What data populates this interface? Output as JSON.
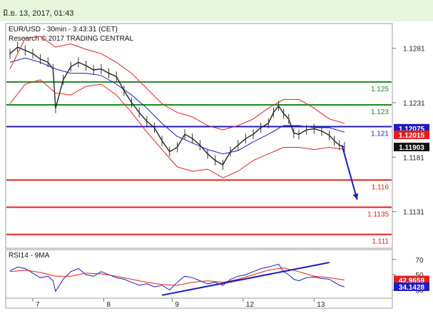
{
  "header": {
    "datetime": "มิ.ย. 13, 2017, 01:43"
  },
  "chart_data": [
    {
      "type": "line",
      "title": "EUR/USD - 30min - 3:43:31 (CET)",
      "subtitle": "Research © 2017 TRADING CENTRAL",
      "x_ticks": [
        "7",
        "8",
        "9",
        "12",
        "13"
      ],
      "y_ticks": [
        1.1181,
        1.1231,
        1.1281,
        1.1131
      ],
      "ylim": [
        1.1098,
        1.1303
      ],
      "levels": [
        {
          "label": "1.125",
          "value": 1.125,
          "color": "#1e8a1e"
        },
        {
          "label": "1.123",
          "value": 1.1229,
          "color": "#1e8a1e"
        },
        {
          "label": "1.121",
          "value": 1.1209,
          "color": "#1c1cbf"
        },
        {
          "label": "1.116",
          "value": 1.116,
          "color": "#e02020"
        },
        {
          "label": "1.1135",
          "value": 1.1135,
          "color": "#e02020"
        },
        {
          "label": "1.111",
          "value": 1.111,
          "color": "#e02020"
        }
      ],
      "price_badges": [
        {
          "label": "1.12075",
          "value": 1.12075,
          "color": "#1c1cbf"
        },
        {
          "label": "1.12015",
          "value": 1.12015,
          "color": "#e02020"
        },
        {
          "label": "1.11903",
          "value": 1.11903,
          "color": "#111111"
        }
      ],
      "series": [
        {
          "name": "close",
          "color": "#222222",
          "x": [
            0,
            3,
            6,
            9,
            12,
            15,
            17,
            18,
            21,
            24,
            27,
            30,
            33,
            36,
            39,
            42,
            45,
            48,
            51,
            54,
            57,
            60,
            63,
            66,
            69,
            72,
            75,
            78,
            81,
            84,
            87,
            90,
            93,
            96,
            99,
            102,
            104,
            106,
            108,
            110,
            112,
            114,
            117,
            120,
            123,
            126,
            128,
            130,
            132
          ],
          "y": [
            1.1276,
            1.1282,
            1.1279,
            1.1276,
            1.1271,
            1.1268,
            1.1262,
            1.1226,
            1.1252,
            1.1264,
            1.1268,
            1.1265,
            1.1261,
            1.1262,
            1.1258,
            1.1255,
            1.1242,
            1.1231,
            1.1222,
            1.1214,
            1.1208,
            1.1196,
            1.1186,
            1.119,
            1.1202,
            1.1198,
            1.1192,
            1.1184,
            1.1178,
            1.1174,
            1.1186,
            1.1192,
            1.1198,
            1.1202,
            1.1208,
            1.1212,
            1.1222,
            1.1228,
            1.1221,
            1.1216,
            1.1203,
            1.1202,
            1.1206,
            1.1207,
            1.1205,
            1.1201,
            1.1196,
            1.1192,
            1.11903
          ]
        },
        {
          "name": "ma",
          "color": "#1c1cbf",
          "x": [
            0,
            6,
            12,
            18,
            24,
            30,
            36,
            42,
            48,
            54,
            60,
            66,
            72,
            78,
            84,
            90,
            96,
            102,
            108,
            114,
            120,
            126,
            132
          ],
          "y": [
            1.1268,
            1.1272,
            1.1268,
            1.1262,
            1.1258,
            1.1258,
            1.1256,
            1.1248,
            1.1238,
            1.1226,
            1.1212,
            1.12,
            1.1194,
            1.1188,
            1.1184,
            1.1187,
            1.1195,
            1.1202,
            1.121,
            1.121,
            1.1208,
            1.1208,
            1.1204
          ]
        },
        {
          "name": "upper",
          "color": "#e02020",
          "x": [
            0,
            6,
            12,
            18,
            24,
            30,
            36,
            42,
            48,
            54,
            60,
            66,
            72,
            78,
            84,
            90,
            96,
            102,
            108,
            114,
            120,
            126,
            132
          ],
          "y": [
            1.1262,
            1.129,
            1.1292,
            1.1282,
            1.1285,
            1.128,
            1.1276,
            1.1268,
            1.1258,
            1.1244,
            1.123,
            1.1222,
            1.1218,
            1.121,
            1.1206,
            1.121,
            1.1216,
            1.1226,
            1.1234,
            1.1234,
            1.1226,
            1.1216,
            1.1212
          ]
        },
        {
          "name": "lower",
          "color": "#e02020",
          "x": [
            0,
            6,
            12,
            18,
            24,
            30,
            36,
            42,
            48,
            54,
            60,
            66,
            72,
            78,
            84,
            90,
            96,
            102,
            108,
            114,
            120,
            126,
            132
          ],
          "y": [
            1.123,
            1.1248,
            1.1252,
            1.124,
            1.1238,
            1.1246,
            1.1248,
            1.1238,
            1.1222,
            1.1204,
            1.1188,
            1.1172,
            1.1168,
            1.117,
            1.1162,
            1.1168,
            1.1178,
            1.1184,
            1.119,
            1.119,
            1.1188,
            1.119,
            1.1188
          ]
        }
      ],
      "annotations": [
        {
          "type": "arrow",
          "color": "#1c1cbf",
          "x": [
            131,
            137
          ],
          "y": [
            1.1192,
            1.1142
          ]
        }
      ]
    },
    {
      "type": "line",
      "title": "RSI14 - 9MA",
      "y_ticks": [
        70,
        50,
        30
      ],
      "ylim": [
        20,
        82
      ],
      "price_badges": [
        {
          "label": "42.9659",
          "value": 42.9659,
          "color": "#e02020"
        },
        {
          "label": "34.1428",
          "value": 34.1428,
          "color": "#1c1cbf"
        }
      ],
      "series": [
        {
          "name": "RSI14",
          "color": "#1c1cbf",
          "x": [
            0,
            3,
            6,
            9,
            12,
            15,
            17,
            18,
            21,
            24,
            27,
            30,
            33,
            36,
            39,
            42,
            45,
            48,
            51,
            54,
            57,
            60,
            63,
            66,
            69,
            72,
            75,
            78,
            81,
            84,
            87,
            90,
            93,
            96,
            99,
            102,
            104,
            106,
            108,
            110,
            112,
            114,
            117,
            120,
            123,
            126,
            128,
            130,
            132
          ],
          "y": [
            55,
            60,
            58,
            52,
            46,
            48,
            42,
            28,
            44,
            54,
            58,
            50,
            48,
            54,
            50,
            46,
            44,
            40,
            36,
            38,
            34,
            36,
            30,
            40,
            48,
            46,
            42,
            38,
            40,
            36,
            44,
            48,
            50,
            54,
            58,
            60,
            62,
            64,
            54,
            50,
            44,
            42,
            46,
            47,
            45,
            44,
            40,
            36,
            34
          ]
        },
        {
          "name": "9MA",
          "color": "#e02020",
          "x": [
            0,
            6,
            12,
            18,
            24,
            30,
            36,
            42,
            48,
            54,
            60,
            66,
            72,
            78,
            84,
            90,
            96,
            102,
            108,
            114,
            120,
            126,
            132
          ],
          "y": [
            54,
            56,
            53,
            48,
            48,
            52,
            51,
            48,
            44,
            40,
            37,
            36,
            40,
            42,
            40,
            44,
            50,
            56,
            59,
            54,
            48,
            46,
            43
          ]
        }
      ],
      "annotations": [
        {
          "type": "trendline",
          "color": "#1c1cbf",
          "x": [
            60,
            126
          ],
          "y": [
            23,
            66
          ]
        }
      ]
    }
  ]
}
